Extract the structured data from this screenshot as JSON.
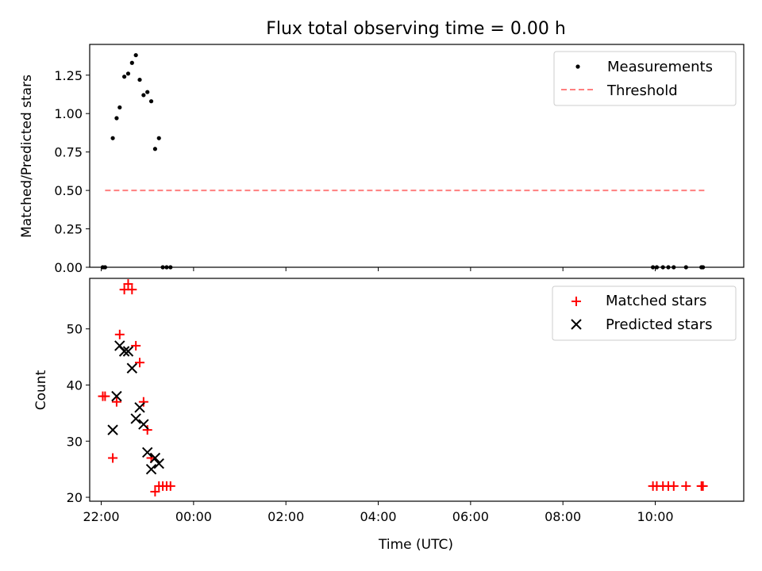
{
  "title": "Flux total observing time = 0.00 h",
  "chart_data": [
    {
      "type": "scatter",
      "title": "Flux total observing time = 0.00 h",
      "xlabel": "",
      "ylabel": "Matched/Predicted stars",
      "xlim": [
        "21:45",
        "11:55"
      ],
      "ylim": [
        0,
        1.45
      ],
      "xtick_labels": [
        "22:00",
        "00:00",
        "02:00",
        "04:00",
        "06:00",
        "08:00",
        "10:00"
      ],
      "ytick_labels": [
        "0.00",
        "0.25",
        "0.50",
        "0.75",
        "1.00",
        "1.25"
      ],
      "legend_position": "top-right",
      "series": [
        {
          "name": "Measurements",
          "kind": "scatter",
          "color": "#000000",
          "points": [
            [
              "22:02",
              0.0
            ],
            [
              "22:05",
              0.0
            ],
            [
              "22:15",
              0.84
            ],
            [
              "22:20",
              0.97
            ],
            [
              "22:24",
              1.04
            ],
            [
              "22:30",
              1.24
            ],
            [
              "22:35",
              1.26
            ],
            [
              "22:40",
              1.33
            ],
            [
              "22:45",
              1.38
            ],
            [
              "22:50",
              1.22
            ],
            [
              "22:55",
              1.12
            ],
            [
              "23:00",
              1.14
            ],
            [
              "23:05",
              1.08
            ],
            [
              "23:10",
              0.77
            ],
            [
              "23:15",
              0.84
            ],
            [
              "23:20",
              0.0
            ],
            [
              "23:25",
              0.0
            ],
            [
              "23:30",
              0.0
            ],
            [
              "09:57",
              0.0
            ],
            [
              "10:02",
              0.0
            ],
            [
              "10:10",
              0.0
            ],
            [
              "10:17",
              0.0
            ],
            [
              "10:24",
              0.0
            ],
            [
              "10:40",
              0.0
            ],
            [
              "11:00",
              0.0
            ],
            [
              "11:02",
              0.0
            ]
          ]
        },
        {
          "name": "Threshold",
          "kind": "dashed-line",
          "color": "#ff7f7f",
          "points": [
            [
              "22:05",
              0.5
            ],
            [
              "11:05",
              0.5
            ]
          ]
        }
      ]
    },
    {
      "type": "scatter",
      "title": "",
      "xlabel": "Time (UTC)",
      "ylabel": "Count",
      "xlim": [
        "21:45",
        "11:55"
      ],
      "ylim": [
        19.3,
        59
      ],
      "xtick_labels": [
        "22:00",
        "00:00",
        "02:00",
        "04:00",
        "06:00",
        "08:00",
        "10:00"
      ],
      "ytick_labels": [
        "20",
        "30",
        "40",
        "50"
      ],
      "legend_position": "top-right",
      "series": [
        {
          "name": "Matched stars",
          "marker": "plus",
          "color": "#ff0000",
          "points": [
            [
              "22:02",
              38
            ],
            [
              "22:05",
              38
            ],
            [
              "22:15",
              27
            ],
            [
              "22:20",
              37
            ],
            [
              "22:24",
              49
            ],
            [
              "22:30",
              57
            ],
            [
              "22:35",
              58
            ],
            [
              "22:40",
              57
            ],
            [
              "22:45",
              47
            ],
            [
              "22:50",
              44
            ],
            [
              "22:55",
              37
            ],
            [
              "23:00",
              32
            ],
            [
              "23:05",
              27
            ],
            [
              "23:10",
              21
            ],
            [
              "23:15",
              22
            ],
            [
              "23:20",
              22
            ],
            [
              "23:25",
              22
            ],
            [
              "23:30",
              22
            ],
            [
              "09:57",
              22
            ],
            [
              "10:02",
              22
            ],
            [
              "10:10",
              22
            ],
            [
              "10:17",
              22
            ],
            [
              "10:24",
              22
            ],
            [
              "10:40",
              22
            ],
            [
              "11:00",
              22
            ],
            [
              "11:02",
              22
            ]
          ]
        },
        {
          "name": "Predicted stars",
          "marker": "x",
          "color": "#000000",
          "points": [
            [
              "22:15",
              32
            ],
            [
              "22:20",
              38
            ],
            [
              "22:24",
              47
            ],
            [
              "22:30",
              46
            ],
            [
              "22:35",
              46
            ],
            [
              "22:40",
              43
            ],
            [
              "22:45",
              34
            ],
            [
              "22:50",
              36
            ],
            [
              "22:55",
              33
            ],
            [
              "23:00",
              28
            ],
            [
              "23:05",
              25
            ],
            [
              "23:10",
              27
            ],
            [
              "23:15",
              26
            ]
          ]
        }
      ]
    }
  ]
}
